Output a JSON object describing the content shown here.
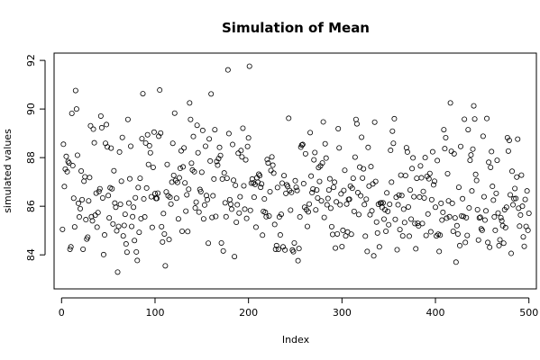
{
  "chart_data": {
    "type": "scatter",
    "title": "Simulation of Mean",
    "xlabel": "Index",
    "ylabel": "simulated values",
    "xlim": [
      -8,
      508
    ],
    "ylim": [
      82.6,
      92.3
    ],
    "xticks": [
      0,
      100,
      200,
      300,
      400,
      500
    ],
    "yticks": [
      84,
      86,
      88,
      90,
      92
    ],
    "grid": false,
    "legend": "none",
    "marker": "open-circle",
    "color": "#000000",
    "series": [
      {
        "x": [
          1,
          2,
          3,
          4,
          5,
          6,
          7,
          8,
          9,
          10,
          11,
          12,
          13,
          14,
          15,
          16,
          17,
          18,
          19,
          20,
          21,
          22,
          23,
          24,
          25,
          26,
          27,
          28,
          29,
          30,
          31,
          32,
          33,
          34,
          35,
          36,
          37,
          38,
          39,
          40,
          41,
          42,
          43,
          44,
          45,
          46,
          47,
          48,
          49,
          50,
          51,
          52,
          53,
          54,
          55,
          56,
          57,
          58,
          59,
          60,
          61,
          62,
          63,
          64,
          65,
          66,
          67,
          68,
          69,
          70,
          71,
          72,
          73,
          74,
          75,
          76,
          77,
          78,
          79,
          80,
          81,
          82,
          83,
          84,
          85,
          86,
          87,
          88,
          89,
          90,
          91,
          92,
          93,
          94,
          95,
          96,
          97,
          98,
          99,
          100,
          101,
          102,
          103,
          104,
          105,
          106,
          107,
          108,
          109,
          110,
          111,
          112,
          113,
          114,
          115,
          116,
          117,
          118,
          119,
          120,
          121,
          122,
          123,
          124,
          125,
          126,
          127,
          128,
          129,
          130,
          131,
          132,
          133,
          134,
          135,
          136,
          137,
          138,
          139,
          140,
          141,
          142,
          143,
          144,
          145,
          146,
          147,
          148,
          149,
          150,
          151,
          152,
          153,
          154,
          155,
          156,
          157,
          158,
          159,
          160,
          161,
          162,
          163,
          164,
          165,
          166,
          167,
          168,
          169,
          170,
          171,
          172,
          173,
          174,
          175,
          176,
          177,
          178,
          179,
          180,
          181,
          182,
          183,
          184,
          185,
          186,
          187,
          188,
          189,
          190,
          191,
          192,
          193,
          194,
          195,
          196,
          197,
          198,
          199,
          200,
          201,
          202,
          203,
          204,
          205,
          206,
          207,
          208,
          209,
          210,
          211,
          212,
          213,
          214,
          215,
          216,
          217,
          218,
          219,
          220,
          221,
          222,
          223,
          224,
          225,
          226,
          227,
          228,
          229,
          230,
          231,
          232,
          233,
          234,
          235,
          236,
          237,
          238,
          239,
          240,
          241,
          242,
          243,
          244,
          245,
          246,
          247,
          248,
          249,
          250,
          251,
          252,
          253,
          254,
          255,
          256,
          257,
          258,
          259,
          260,
          261,
          262,
          263,
          264,
          265,
          266,
          267,
          268,
          269,
          270,
          271,
          272,
          273,
          274,
          275,
          276,
          277,
          278,
          279,
          280,
          281,
          282,
          283,
          284,
          285,
          286,
          287,
          288,
          289,
          290,
          291,
          292,
          293,
          294,
          295,
          296,
          297,
          298,
          299,
          300,
          301,
          302,
          303,
          304,
          305,
          306,
          307,
          308,
          309,
          310,
          311,
          312,
          313,
          314,
          315,
          316,
          317,
          318,
          319,
          320,
          321,
          322,
          323,
          324,
          325,
          326,
          327,
          328,
          329,
          330,
          331,
          332,
          333,
          334,
          335,
          336,
          337,
          338,
          339,
          340,
          341,
          342,
          343,
          344,
          345,
          346,
          347,
          348,
          349,
          350,
          351,
          352,
          353,
          354,
          355,
          356,
          357,
          358,
          359,
          360,
          361,
          362,
          363,
          364,
          365,
          366,
          367,
          368,
          369,
          370,
          371,
          372,
          373,
          374,
          375,
          376,
          377,
          378,
          379,
          380,
          381,
          382,
          383,
          384,
          385,
          386,
          387,
          388,
          389,
          390,
          391,
          392,
          393,
          394,
          395,
          396,
          397,
          398,
          399,
          400,
          401,
          402,
          403,
          404,
          405,
          406,
          407,
          408,
          409,
          410,
          411,
          412,
          413,
          414,
          415,
          416,
          417,
          418,
          419,
          420,
          421,
          422,
          423,
          424,
          425,
          426,
          427,
          428,
          429,
          430,
          431,
          432,
          433,
          434,
          435,
          436,
          437,
          438,
          439,
          440,
          441,
          442,
          443,
          444,
          445,
          446,
          447,
          448,
          449,
          450,
          451,
          452,
          453,
          454,
          455,
          456,
          457,
          458,
          459,
          460,
          461,
          462,
          463,
          464,
          465,
          466,
          467,
          468,
          469,
          470,
          471,
          472,
          473,
          474,
          475,
          476,
          477,
          478,
          479,
          480,
          481,
          482,
          483,
          484,
          485,
          486,
          487,
          488,
          489,
          490,
          491,
          492,
          493,
          494,
          495,
          496,
          497,
          498,
          499,
          500
        ],
        "y": [
          85.05,
          88.55,
          86.81,
          87.53,
          88.05,
          87.42,
          87.84,
          87.78,
          84.23,
          84.33,
          89.82,
          87.67,
          86.33,
          85.15,
          90.76,
          90.0,
          88.1,
          86.12,
          85.56,
          85.9,
          87.45,
          86.27,
          84.23,
          87.03,
          87.21,
          85.45,
          84.65,
          84.73,
          86.22,
          87.18,
          89.31,
          85.57,
          85.4,
          89.17,
          88.61,
          85.63,
          86.54,
          85.14,
          85.74,
          86.61,
          86.72,
          89.71,
          89.23,
          86.34,
          84.01,
          84.82,
          88.59,
          89.36,
          88.44,
          86.44,
          85.52,
          86.76,
          88.39,
          86.72,
          85.27,
          87.46,
          86.13,
          85.96,
          84.99,
          83.29,
          85.17,
          88.23,
          86.08,
          87.03,
          88.83,
          84.78,
          85.21,
          85.67,
          84.45,
          84.11,
          89.57,
          86.13,
          87.13,
          88.47,
          85.17,
          85.57,
          85.96,
          84.59,
          86.35,
          84.12,
          83.77,
          86.77,
          84.93,
          87.15,
          85.49,
          88.78,
          90.63,
          86.3,
          85.56,
          88.6,
          86.75,
          88.94,
          87.72,
          88.49,
          88.2,
          86.39,
          85.13,
          87.6,
          89.05,
          86.52,
          86.32,
          86.32,
          86.54,
          88.88,
          90.78,
          89.01,
          85.16,
          84.53,
          85.7,
          84.86,
          83.55,
          86.59,
          87.72,
          86.43,
          84.63,
          86.37,
          86.09,
          86.99,
          88.59,
          87.27,
          89.83,
          87.06,
          86.33,
          86.98,
          85.48,
          87.17,
          87.56,
          88.28,
          84.97,
          87.62,
          88.4,
          86.96,
          85.8,
          86.47,
          84.96,
          86.7,
          90.25,
          89.57,
          87.77,
          87.49,
          88.87,
          87.42,
          85.93,
          86.17,
          89.33,
          88.2,
          85.76,
          86.69,
          86.6,
          87.4,
          89.12,
          85.48,
          86.05,
          88.47,
          86.44,
          86.27,
          84.48,
          88.77,
          87.86,
          90.62,
          85.54,
          86.43,
          87.12,
          89.15,
          85.58,
          87.84,
          87.69,
          87.96,
          88.42,
          88.09,
          84.49,
          87.12,
          84.16,
          87.37,
          86.14,
          85.57,
          87.15,
          91.61,
          88.99,
          86.27,
          86.08,
          85.88,
          88.54,
          87.07,
          83.93,
          86.86,
          85.34,
          86.06,
          88.18,
          85.72,
          86.39,
          88.29,
          88.03,
          89.21,
          86.84,
          85.88,
          87.91,
          85.5,
          88.46,
          88.81,
          91.76,
          85.83,
          86.95,
          87.12,
          86.96,
          86.37,
          86.9,
          85.14,
          87.17,
          86.99,
          87.32,
          87.26,
          86.78,
          86.92,
          84.81,
          85.79,
          86.3,
          85.75,
          85.57,
          87.92,
          87.78,
          85.6,
          86.6,
          87.47,
          88.03,
          87.69,
          87.36,
          85.25,
          84.23,
          84.38,
          86.77,
          84.23,
          85.56,
          84.82,
          85.67,
          86.95,
          84.33,
          87.26,
          84.2,
          86.53,
          86.88,
          86.81,
          89.62,
          86.65,
          85.84,
          86.57,
          84.2,
          84.13,
          84.49,
          87.05,
          86.78,
          86.65,
          83.76,
          84.26,
          85.56,
          88.43,
          88.52,
          88.54,
          86.93,
          85.96,
          88.16,
          85.86,
          85.17,
          85.77,
          86.09,
          89.03,
          87.24,
          86.56,
          86.71,
          87.91,
          88.21,
          85.85,
          86.67,
          86.34,
          87.59,
          87.02,
          87.66,
          86.22,
          87.78,
          89.47,
          85.54,
          88.57,
          87.98,
          86.06,
          86.32,
          86.67,
          87.13,
          85.92,
          85.16,
          84.84,
          86.78,
          86.99,
          84.28,
          86.18,
          84.86,
          89.19,
          88.4,
          86.06,
          86.51,
          84.34,
          85.01,
          86.65,
          87.48,
          84.78,
          86.09,
          84.94,
          86.28,
          86.29,
          86.83,
          84.85,
          86.74,
          87.15,
          85.79,
          88.02,
          89.57,
          89.39,
          86.56,
          85.66,
          87.61,
          86.43,
          88.84,
          87.16,
          87.54,
          86.07,
          84.77,
          86.29,
          84.14,
          88.42,
          86.83,
          85.65,
          87.63,
          85.81,
          86.92,
          83.96,
          89.46,
          87.02,
          85.35,
          84.9,
          86.08,
          84.33,
          86.13,
          86.14,
          85.95,
          86.14,
          85.47,
          85.86,
          84.97,
          86.55,
          85.79,
          85.24,
          86.08,
          88.3,
          86.99,
          89.09,
          88.59,
          89.6,
          85.46,
          86.37,
          84.21,
          86.06,
          86.46,
          85.04,
          87.28,
          86.44,
          84.78,
          85.88,
          85.33,
          87.26,
          88.41,
          88.23,
          85.97,
          84.77,
          86.67,
          85.47,
          87.55,
          87.99,
          86.39,
          85.29,
          84.25,
          87.15,
          85.3,
          85.19,
          86.38,
          87.66,
          87.17,
          85.29,
          86.61,
          86.34,
          88.0,
          84.8,
          87.23,
          85.68,
          87.13,
          87.35,
          84.95,
          86.27,
          88.24,
          86.88,
          87.03,
          85.96,
          84.78,
          87.88,
          84.85,
          84.14,
          84.81,
          86.12,
          85.43,
          85.75,
          89.15,
          88.37,
          88.82,
          85.51,
          87.34,
          86.22,
          85.57,
          90.25,
          88.26,
          86.12,
          84.97,
          88.16,
          85.52,
          83.7,
          85.2,
          84.86,
          86.78,
          84.38,
          88.46,
          85.6,
          86.31,
          85.58,
          89.58,
          84.51,
          85.53,
          84.8,
          89.15,
          85.93,
          87.89,
          88.11,
          86.63,
          88.35,
          90.13,
          89.59,
          87.31,
          87.06,
          85.86,
          84.61,
          85.52,
          85.55,
          85.07,
          85.01,
          88.88,
          86.39,
          85.43,
          85.81,
          89.61,
          84.51,
          87.81,
          84.31,
          87.6,
          88.25,
          86.82,
          86.25,
          85.56,
          85.01,
          86.53,
          87.89,
          85.72,
          84.38,
          84.62,
          85.53,
          85.4,
          85.2,
          84.48,
          85.86,
          85.12,
          85.96,
          88.82,
          88.27,
          88.71,
          86.47,
          84.06,
          87.44,
          86.06,
          86.31,
          86.73,
          86.32,
          87.2,
          88.76,
          85.92,
          85.18,
          85.64,
          87.28,
          86.0,
          84.74,
          84.35,
          86.28,
          85.17,
          86.63,
          85.01,
          85.71
        ]
      }
    ]
  }
}
